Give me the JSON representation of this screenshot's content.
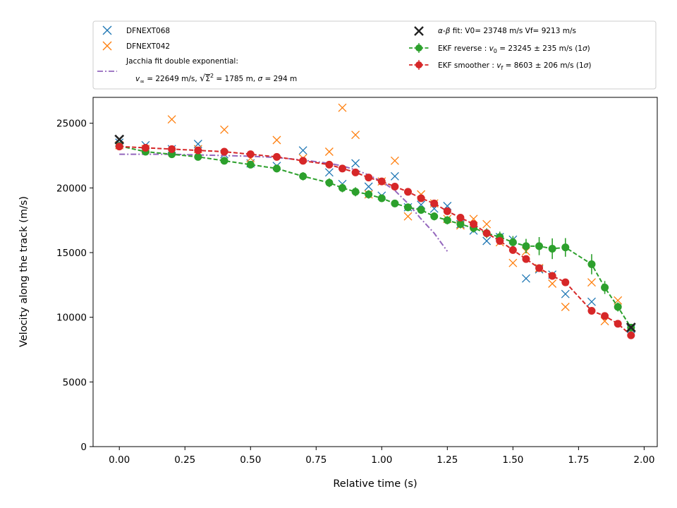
{
  "chart_data": {
    "type": "scatter",
    "xlabel": "Relative time (s)",
    "ylabel": "Velocity along the track (m/s)",
    "xlim": [
      -0.1,
      2.05
    ],
    "ylim": [
      0,
      27000
    ],
    "xticks": [
      0.0,
      0.25,
      0.5,
      0.75,
      1.0,
      1.25,
      1.5,
      1.75,
      2.0
    ],
    "xtick_labels": [
      "0.00",
      "0.25",
      "0.50",
      "0.75",
      "1.00",
      "1.25",
      "1.50",
      "1.75",
      "2.00"
    ],
    "yticks": [
      0,
      5000,
      10000,
      15000,
      20000,
      25000
    ],
    "ytick_labels": [
      "0",
      "5000",
      "10000",
      "15000",
      "20000",
      "25000"
    ],
    "grid": false,
    "legend_position": "above-plot",
    "legend": {
      "left": [
        "DFNEXT068",
        "DFNEXT042",
        "Jacchia fit double exponential:"
      ],
      "jacchia_line2_parts": [
        "v",
        "∞",
        " = 22649 m/s, ",
        "√",
        "Σ",
        "2",
        " = 1785 m, ",
        "σ",
        " = 294 m"
      ],
      "right": [
        {
          "parts": [
            "α-β",
            " fit: V0= 23748 m/s   Vf= 9213 m/s"
          ]
        },
        {
          "parts": [
            "EKF reverse : ",
            "v",
            "0",
            " =  23245 ± 235 m/s (1",
            "σ",
            ")"
          ]
        },
        {
          "parts": [
            "EKF smoother : ",
            "v",
            "f",
            " =  8603 ± 206 m/s (1",
            "σ",
            ")"
          ]
        }
      ]
    },
    "series": [
      {
        "name": "DFNEXT068",
        "marker": "x",
        "color": "#1f77b4",
        "x": [
          0.0,
          0.1,
          0.2,
          0.3,
          0.4,
          0.5,
          0.6,
          0.7,
          0.8,
          0.85,
          0.9,
          0.95,
          1.0,
          1.05,
          1.1,
          1.15,
          1.2,
          1.25,
          1.3,
          1.35,
          1.4,
          1.45,
          1.5,
          1.55,
          1.6,
          1.65,
          1.7,
          1.8,
          1.95
        ],
        "y": [
          23500,
          23300,
          23000,
          23400,
          22600,
          21900,
          21700,
          22900,
          21200,
          20300,
          21900,
          20100,
          19400,
          20900,
          18500,
          18700,
          18400,
          18600,
          17200,
          16700,
          15900,
          16200,
          16000,
          13000,
          13700,
          13300,
          11800,
          11200,
          9100
        ]
      },
      {
        "name": "DFNEXT042",
        "marker": "x",
        "color": "#ff7f0e",
        "x": [
          0.0,
          0.1,
          0.2,
          0.3,
          0.4,
          0.5,
          0.6,
          0.7,
          0.8,
          0.85,
          0.9,
          0.95,
          1.0,
          1.05,
          1.1,
          1.15,
          1.2,
          1.25,
          1.3,
          1.35,
          1.4,
          1.45,
          1.5,
          1.55,
          1.6,
          1.65,
          1.7,
          1.8,
          1.85,
          1.9
        ],
        "y": [
          23300,
          23000,
          25300,
          23000,
          24500,
          22300,
          23700,
          22300,
          22800,
          26200,
          24100,
          19500,
          20500,
          22100,
          17800,
          19500,
          18800,
          17600,
          17100,
          17600,
          17200,
          15800,
          14200,
          15100,
          13800,
          12600,
          10800,
          12700,
          9700,
          11300
        ]
      },
      {
        "name": "Jacchia fit double exponential",
        "type": "line",
        "style": "dashdot",
        "color": "#9467bd",
        "x": [
          0.0,
          0.1,
          0.2,
          0.3,
          0.4,
          0.5,
          0.6,
          0.7,
          0.8,
          0.85,
          0.9,
          0.95,
          1.0,
          1.05,
          1.1,
          1.15,
          1.2,
          1.25
        ],
        "y": [
          22600,
          22600,
          22600,
          22550,
          22500,
          22450,
          22350,
          22150,
          21900,
          21700,
          21400,
          21000,
          20500,
          19800,
          18800,
          17600,
          16500,
          15100
        ]
      },
      {
        "name": "α-β fit",
        "marker": "x-bold",
        "color": "#222222",
        "x": [
          0.0,
          1.95
        ],
        "y": [
          23748,
          9213
        ]
      },
      {
        "name": "EKF reverse",
        "type": "line-errorbar",
        "style": "dashed",
        "color": "#2ca02c",
        "x": [
          0.0,
          0.1,
          0.2,
          0.3,
          0.4,
          0.5,
          0.6,
          0.7,
          0.8,
          0.85,
          0.9,
          0.95,
          1.0,
          1.05,
          1.1,
          1.15,
          1.2,
          1.25,
          1.3,
          1.35,
          1.4,
          1.45,
          1.5,
          1.55,
          1.6,
          1.65,
          1.7,
          1.8,
          1.85,
          1.9,
          1.95
        ],
        "y": [
          23245,
          22800,
          22600,
          22400,
          22100,
          21800,
          21500,
          20900,
          20400,
          20000,
          19700,
          19500,
          19200,
          18800,
          18500,
          18300,
          17800,
          17500,
          17200,
          16900,
          16500,
          16200,
          15800,
          15500,
          15500,
          15300,
          15400,
          14100,
          12300,
          10800,
          9200
        ],
        "err": [
          235,
          240,
          250,
          260,
          270,
          280,
          300,
          320,
          340,
          340,
          350,
          330,
          300,
          290,
          300,
          300,
          310,
          320,
          330,
          350,
          380,
          420,
          480,
          560,
          700,
          800,
          720,
          780,
          500,
          350,
          250
        ]
      },
      {
        "name": "EKF smoother",
        "type": "line-errorbar",
        "style": "dashed",
        "color": "#d62728",
        "x": [
          0.0,
          0.1,
          0.2,
          0.3,
          0.4,
          0.5,
          0.6,
          0.7,
          0.8,
          0.85,
          0.9,
          0.95,
          1.0,
          1.05,
          1.1,
          1.15,
          1.2,
          1.25,
          1.3,
          1.35,
          1.4,
          1.45,
          1.5,
          1.55,
          1.6,
          1.65,
          1.7,
          1.8,
          1.85,
          1.9,
          1.95
        ],
        "y": [
          23200,
          23100,
          23000,
          22900,
          22800,
          22600,
          22400,
          22100,
          21800,
          21500,
          21200,
          20800,
          20500,
          20100,
          19700,
          19200,
          18800,
          18200,
          17700,
          17200,
          16500,
          15900,
          15200,
          14500,
          13800,
          13200,
          12700,
          10500,
          10100,
          9500,
          8603
        ],
        "err": [
          200,
          200,
          200,
          200,
          200,
          200,
          200,
          210,
          210,
          210,
          210,
          210,
          210,
          210,
          210,
          210,
          210,
          210,
          210,
          210,
          210,
          210,
          210,
          210,
          210,
          210,
          210,
          210,
          206,
          206,
          206
        ]
      }
    ]
  }
}
